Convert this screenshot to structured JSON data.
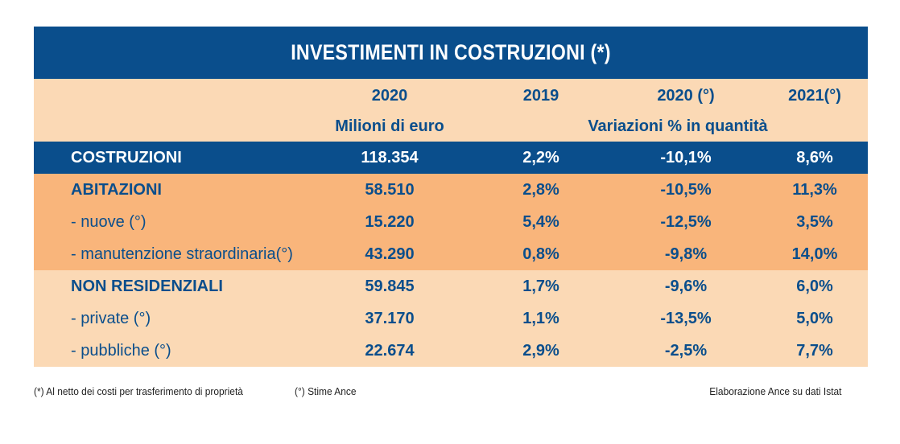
{
  "title": "INVESTIMENTI IN COSTRUZIONI (*)",
  "header": {
    "col1_year": "2020",
    "col2_year": "2019",
    "col3_year": "2020 (°)",
    "col4_year": "2021(°)",
    "col1_unit": "Milioni di euro",
    "variation_label": "Variazioni % in quantità"
  },
  "rows": [
    {
      "label": "COSTRUZIONI",
      "v2020": "118.354",
      "p2019": "2,2%",
      "p2020": "-10,1%",
      "p2021": "8,6%"
    },
    {
      "label": "ABITAZIONI",
      "v2020": "58.510",
      "p2019": "2,8%",
      "p2020": "-10,5%",
      "p2021": "11,3%"
    },
    {
      "label": "- nuove (°)",
      "v2020": "15.220",
      "p2019": "5,4%",
      "p2020": "-12,5%",
      "p2021": "3,5%"
    },
    {
      "label": "- manutenzione straordinaria(°)",
      "v2020": "43.290",
      "p2019": "0,8%",
      "p2020": "-9,8%",
      "p2021": "14,0%"
    },
    {
      "label": "NON RESIDENZIALI",
      "v2020": "59.845",
      "p2019": "1,7%",
      "p2020": "-9,6%",
      "p2021": "6,0%"
    },
    {
      "label": "- private (°)",
      "v2020": "37.170",
      "p2019": "1,1%",
      "p2020": "-13,5%",
      "p2021": "5,0%"
    },
    {
      "label": "- pubbliche (°)",
      "v2020": "22.674",
      "p2019": "2,9%",
      "p2020": "-2,5%",
      "p2021": "7,7%"
    }
  ],
  "footnotes": {
    "note1": "(*) Al netto dei costi per trasferimento di proprietà",
    "note2": "(°) Stime Ance",
    "source": "Elaborazione Ance su dati Istat"
  },
  "colors": {
    "dark_blue": "#0a4e8c",
    "orange": "#f9b57b",
    "light_peach": "#fbd9b5"
  }
}
